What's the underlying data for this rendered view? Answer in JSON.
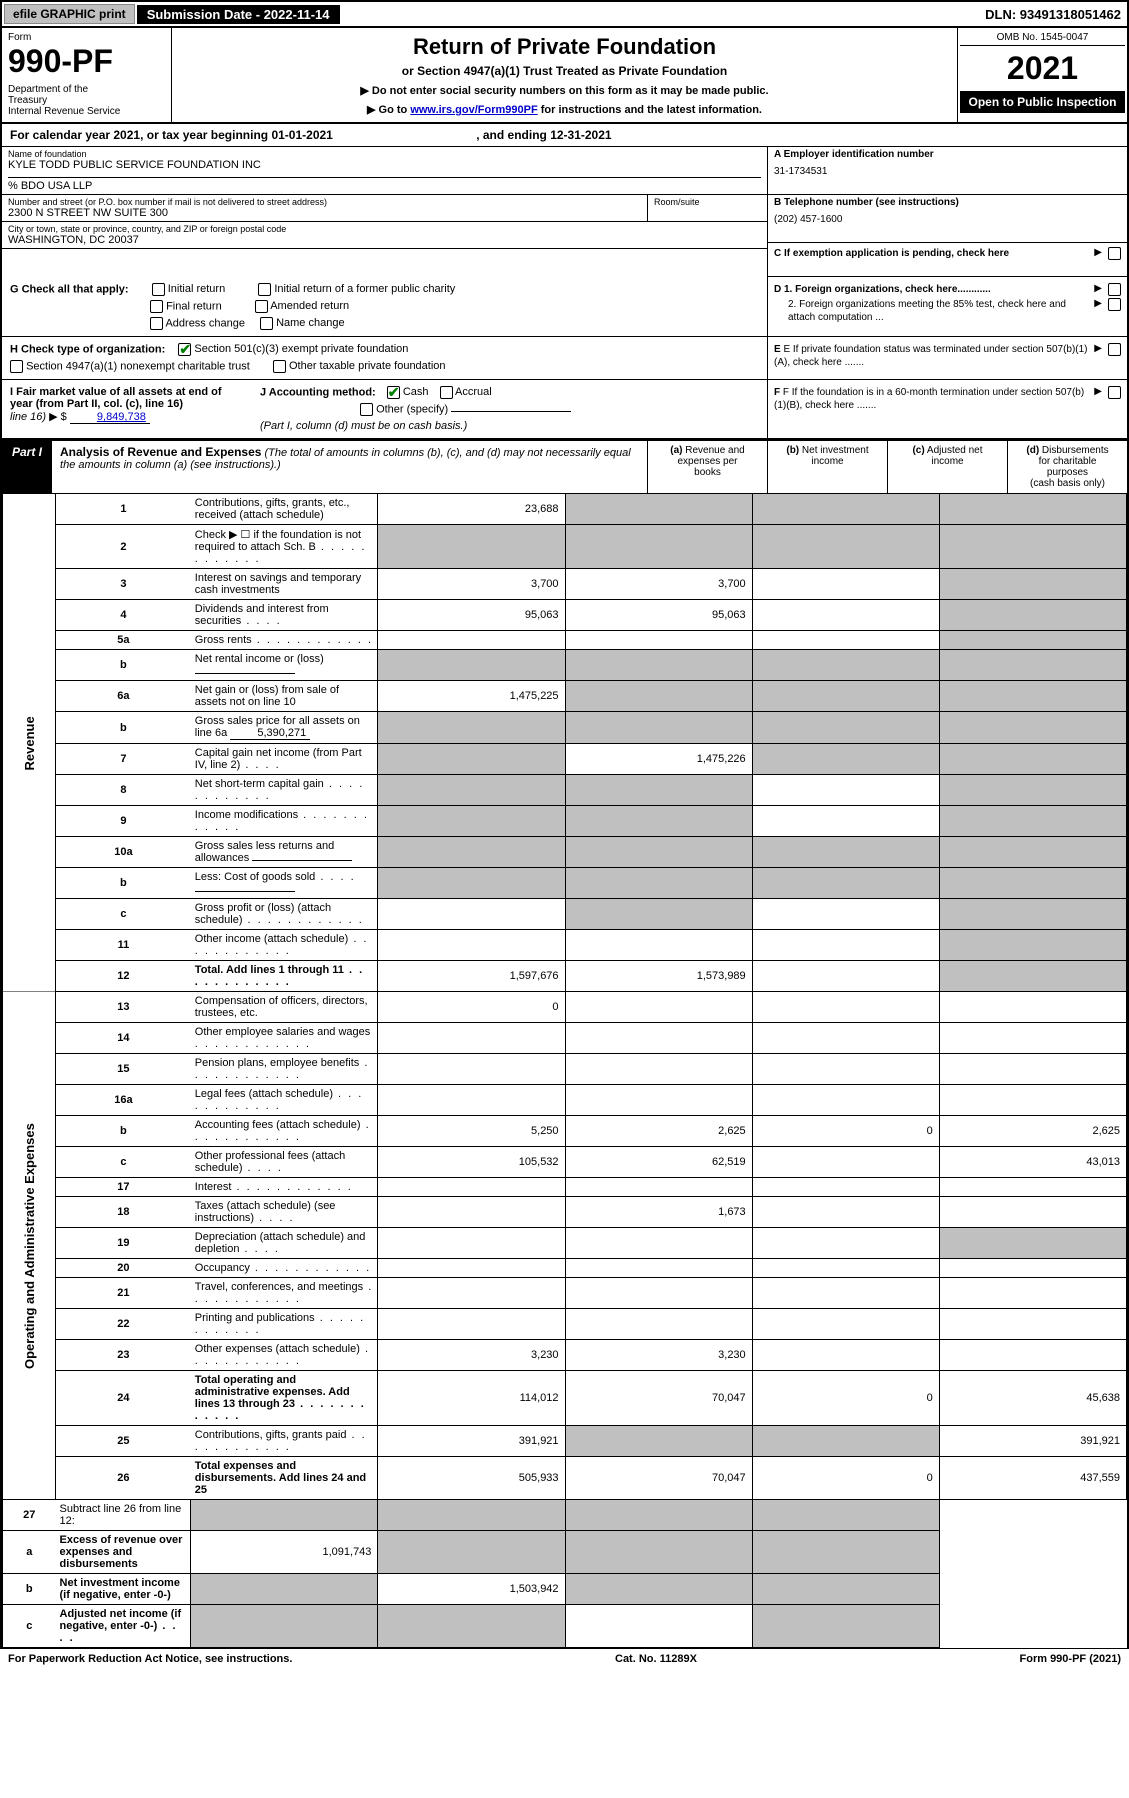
{
  "topbar": {
    "efile": "efile GRAPHIC print",
    "submission_label": "Submission Date - 2022-11-14",
    "dln": "DLN: 93491318051462"
  },
  "header": {
    "form_label": "Form",
    "form_number": "990-PF",
    "dept": "Department of the Treasury\nInternal Revenue Service",
    "title": "Return of Private Foundation",
    "subtitle": "or Section 4947(a)(1) Trust Treated as Private Foundation",
    "notice1": "▶ Do not enter social security numbers on this form as it may be made public.",
    "notice2_pre": "▶ Go to ",
    "notice2_link": "www.irs.gov/Form990PF",
    "notice2_post": " for instructions and the latest information.",
    "omb": "OMB No. 1545-0047",
    "year": "2021",
    "inspect": "Open to Public Inspection"
  },
  "calendar": {
    "text_pre": "For calendar year 2021, or tax year beginning ",
    "begin": "01-01-2021",
    "mid": " , and ending ",
    "end": "12-31-2021"
  },
  "info": {
    "name_label": "Name of foundation",
    "name": "KYLE TODD PUBLIC SERVICE FOUNDATION INC",
    "co": "% BDO USA LLP",
    "addr_label": "Number and street (or P.O. box number if mail is not delivered to street address)",
    "addr": "2300 N STREET NW SUITE 300",
    "room_label": "Room/suite",
    "city_label": "City or town, state or province, country, and ZIP or foreign postal code",
    "city": "WASHINGTON, DC  20037",
    "a_label": "A Employer identification number",
    "a_value": "31-1734531",
    "b_label": "B Telephone number (see instructions)",
    "b_value": "(202) 457-1600",
    "c_label": "C If exemption application is pending, check here"
  },
  "checks": {
    "g_label": "G Check all that apply:",
    "g_opts": [
      "Initial return",
      "Initial return of a former public charity",
      "Final return",
      "Amended return",
      "Address change",
      "Name change"
    ],
    "h_label": "H Check type of organization:",
    "h_opts": [
      "Section 501(c)(3) exempt private foundation",
      "Section 4947(a)(1) nonexempt charitable trust",
      "Other taxable private foundation"
    ],
    "i_label": "I Fair market value of all assets at end of year (from Part II, col. (c), line 16)",
    "i_value": "9,849,738",
    "j_label": "J Accounting method:",
    "j_opts": [
      "Cash",
      "Accrual",
      "Other (specify)"
    ],
    "j_note": "(Part I, column (d) must be on cash basis.)",
    "d1": "D 1. Foreign organizations, check here............",
    "d2": "2. Foreign organizations meeting the 85% test, check here and attach computation ...",
    "e": "E  If private foundation status was terminated under section 507(b)(1)(A), check here .......",
    "f": "F  If the foundation is in a 60-month termination under section 507(b)(1)(B), check here .......",
    "arrow": "▶"
  },
  "part1": {
    "badge": "Part I",
    "title": "Analysis of Revenue and Expenses",
    "title_note": "(The total of amounts in columns (b), (c), and (d) may not necessarily equal the amounts in column (a) (see instructions).)",
    "col_a": "(a) Revenue and expenses per books",
    "col_b": "(b) Net investment income",
    "col_c": "(c) Adjusted net income",
    "col_d": "(d) Disbursements for charitable purposes (cash basis only)"
  },
  "sides": {
    "revenue": "Revenue",
    "expenses": "Operating and Administrative Expenses"
  },
  "rows": [
    {
      "n": "1",
      "desc": "Contributions, gifts, grants, etc., received (attach schedule)",
      "a": "23,688",
      "b": "shade",
      "c": "shade",
      "d": "shade"
    },
    {
      "n": "2",
      "desc": "Check ▶ ☐ if the foundation is not required to attach Sch. B",
      "a": "shade",
      "b": "shade",
      "c": "shade",
      "d": "shade",
      "dots": true
    },
    {
      "n": "3",
      "desc": "Interest on savings and temporary cash investments",
      "a": "3,700",
      "b": "3,700",
      "c": "",
      "d": "shade"
    },
    {
      "n": "4",
      "desc": "Dividends and interest from securities",
      "a": "95,063",
      "b": "95,063",
      "c": "",
      "d": "shade",
      "dots": "short"
    },
    {
      "n": "5a",
      "desc": "Gross rents",
      "a": "",
      "b": "",
      "c": "",
      "d": "shade",
      "dots": true
    },
    {
      "n": "b",
      "desc": "Net rental income or (loss)",
      "a": "shade",
      "b": "shade",
      "c": "shade",
      "d": "shade",
      "inline": true
    },
    {
      "n": "6a",
      "desc": "Net gain or (loss) from sale of assets not on line 10",
      "a": "1,475,225",
      "b": "shade",
      "c": "shade",
      "d": "shade"
    },
    {
      "n": "b",
      "desc": "Gross sales price for all assets on line 6a",
      "a": "shade",
      "b": "shade",
      "c": "shade",
      "d": "shade",
      "inline": true,
      "inline_val": "5,390,271"
    },
    {
      "n": "7",
      "desc": "Capital gain net income (from Part IV, line 2)",
      "a": "shade",
      "b": "1,475,226",
      "c": "shade",
      "d": "shade",
      "dots": "short"
    },
    {
      "n": "8",
      "desc": "Net short-term capital gain",
      "a": "shade",
      "b": "shade",
      "c": "",
      "d": "shade",
      "dots": true
    },
    {
      "n": "9",
      "desc": "Income modifications",
      "a": "shade",
      "b": "shade",
      "c": "",
      "d": "shade",
      "dots": true
    },
    {
      "n": "10a",
      "desc": "Gross sales less returns and allowances",
      "a": "shade",
      "b": "shade",
      "c": "shade",
      "d": "shade",
      "inline": true
    },
    {
      "n": "b",
      "desc": "Less: Cost of goods sold",
      "a": "shade",
      "b": "shade",
      "c": "shade",
      "d": "shade",
      "inline": true,
      "dots": "short"
    },
    {
      "n": "c",
      "desc": "Gross profit or (loss) (attach schedule)",
      "a": "",
      "b": "shade",
      "c": "",
      "d": "shade",
      "dots": true
    },
    {
      "n": "11",
      "desc": "Other income (attach schedule)",
      "a": "",
      "b": "",
      "c": "",
      "d": "shade",
      "dots": true
    },
    {
      "n": "12",
      "desc": "Total. Add lines 1 through 11",
      "a": "1,597,676",
      "b": "1,573,989",
      "c": "",
      "d": "shade",
      "bold": true,
      "dots": true
    }
  ],
  "exp_rows": [
    {
      "n": "13",
      "desc": "Compensation of officers, directors, trustees, etc.",
      "a": "0",
      "b": "",
      "c": "",
      "d": ""
    },
    {
      "n": "14",
      "desc": "Other employee salaries and wages",
      "a": "",
      "b": "",
      "c": "",
      "d": "",
      "dots": true
    },
    {
      "n": "15",
      "desc": "Pension plans, employee benefits",
      "a": "",
      "b": "",
      "c": "",
      "d": "",
      "dots": true
    },
    {
      "n": "16a",
      "desc": "Legal fees (attach schedule)",
      "a": "",
      "b": "",
      "c": "",
      "d": "",
      "dots": true
    },
    {
      "n": "b",
      "desc": "Accounting fees (attach schedule)",
      "a": "5,250",
      "b": "2,625",
      "c": "0",
      "d": "2,625",
      "dots": true
    },
    {
      "n": "c",
      "desc": "Other professional fees (attach schedule)",
      "a": "105,532",
      "b": "62,519",
      "c": "",
      "d": "43,013",
      "dots": "short"
    },
    {
      "n": "17",
      "desc": "Interest",
      "a": "",
      "b": "",
      "c": "",
      "d": "",
      "dots": true
    },
    {
      "n": "18",
      "desc": "Taxes (attach schedule) (see instructions)",
      "a": "",
      "b": "1,673",
      "c": "",
      "d": "",
      "dots": "short"
    },
    {
      "n": "19",
      "desc": "Depreciation (attach schedule) and depletion",
      "a": "",
      "b": "",
      "c": "",
      "d": "shade",
      "dots": "short"
    },
    {
      "n": "20",
      "desc": "Occupancy",
      "a": "",
      "b": "",
      "c": "",
      "d": "",
      "dots": true
    },
    {
      "n": "21",
      "desc": "Travel, conferences, and meetings",
      "a": "",
      "b": "",
      "c": "",
      "d": "",
      "dots": true
    },
    {
      "n": "22",
      "desc": "Printing and publications",
      "a": "",
      "b": "",
      "c": "",
      "d": "",
      "dots": true
    },
    {
      "n": "23",
      "desc": "Other expenses (attach schedule)",
      "a": "3,230",
      "b": "3,230",
      "c": "",
      "d": "",
      "dots": true
    },
    {
      "n": "24",
      "desc": "Total operating and administrative expenses. Add lines 13 through 23",
      "a": "114,012",
      "b": "70,047",
      "c": "0",
      "d": "45,638",
      "bold": true,
      "dots": true
    },
    {
      "n": "25",
      "desc": "Contributions, gifts, grants paid",
      "a": "391,921",
      "b": "shade",
      "c": "shade",
      "d": "391,921",
      "dots": true
    },
    {
      "n": "26",
      "desc": "Total expenses and disbursements. Add lines 24 and 25",
      "a": "505,933",
      "b": "70,047",
      "c": "0",
      "d": "437,559",
      "bold": true
    }
  ],
  "final_rows": [
    {
      "n": "27",
      "desc": "Subtract line 26 from line 12:",
      "a": "shade",
      "b": "shade",
      "c": "shade",
      "d": "shade"
    },
    {
      "n": "a",
      "desc": "Excess of revenue over expenses and disbursements",
      "a": "1,091,743",
      "b": "shade",
      "c": "shade",
      "d": "shade",
      "bold": true
    },
    {
      "n": "b",
      "desc": "Net investment income (if negative, enter -0-)",
      "a": "shade",
      "b": "1,503,942",
      "c": "shade",
      "d": "shade",
      "bold": true
    },
    {
      "n": "c",
      "desc": "Adjusted net income (if negative, enter -0-)",
      "a": "shade",
      "b": "shade",
      "c": "",
      "d": "shade",
      "bold": true,
      "dots": "short"
    }
  ],
  "footer": {
    "left": "For Paperwork Reduction Act Notice, see instructions.",
    "center": "Cat. No. 11289X",
    "right": "Form 990-PF (2021)"
  }
}
